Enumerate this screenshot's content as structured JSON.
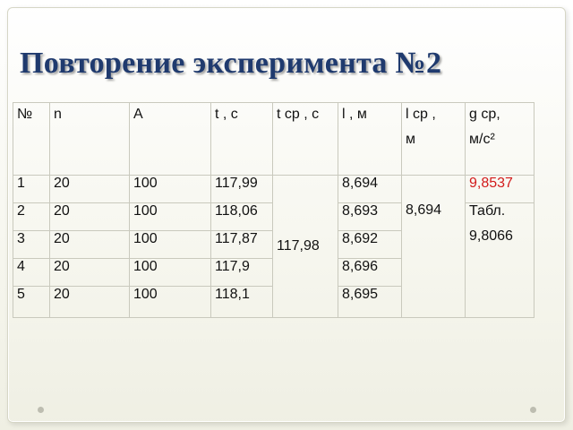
{
  "title": "Повторение эксперимента №2",
  "table": {
    "headers": {
      "num": "№",
      "n": "n",
      "a": "A",
      "t": "t , с",
      "tavg": "t ср , с",
      "l": "l , м",
      "lavg_line1": "l ср ,",
      "lavg_line2": "м",
      "gavg_line1": "g ср,",
      "gavg_line2": "м/с²"
    },
    "rows": [
      {
        "num": "1",
        "n": "20",
        "a": "100",
        "t": "117,99",
        "l": "8,694"
      },
      {
        "num": "2",
        "n": "20",
        "a": "100",
        "t": "118,06",
        "l": "8,693"
      },
      {
        "num": "3",
        "n": "20",
        "a": "100",
        "t": "117,87",
        "l": "8,692"
      },
      {
        "num": "4",
        "n": "20",
        "a": "100",
        "t": "117,9",
        "l": "8,696"
      },
      {
        "num": "5",
        "n": "20",
        "a": "100",
        "t": "118,1",
        "l": "8,695"
      }
    ],
    "tavg_value": "117,98",
    "lavg_value": "8,694",
    "g_value": "9,8537",
    "table_label": "Табл.",
    "table_value": "9,8066"
  },
  "colors": {
    "title": "#1f3a6e",
    "highlight": "#d21b1b"
  }
}
